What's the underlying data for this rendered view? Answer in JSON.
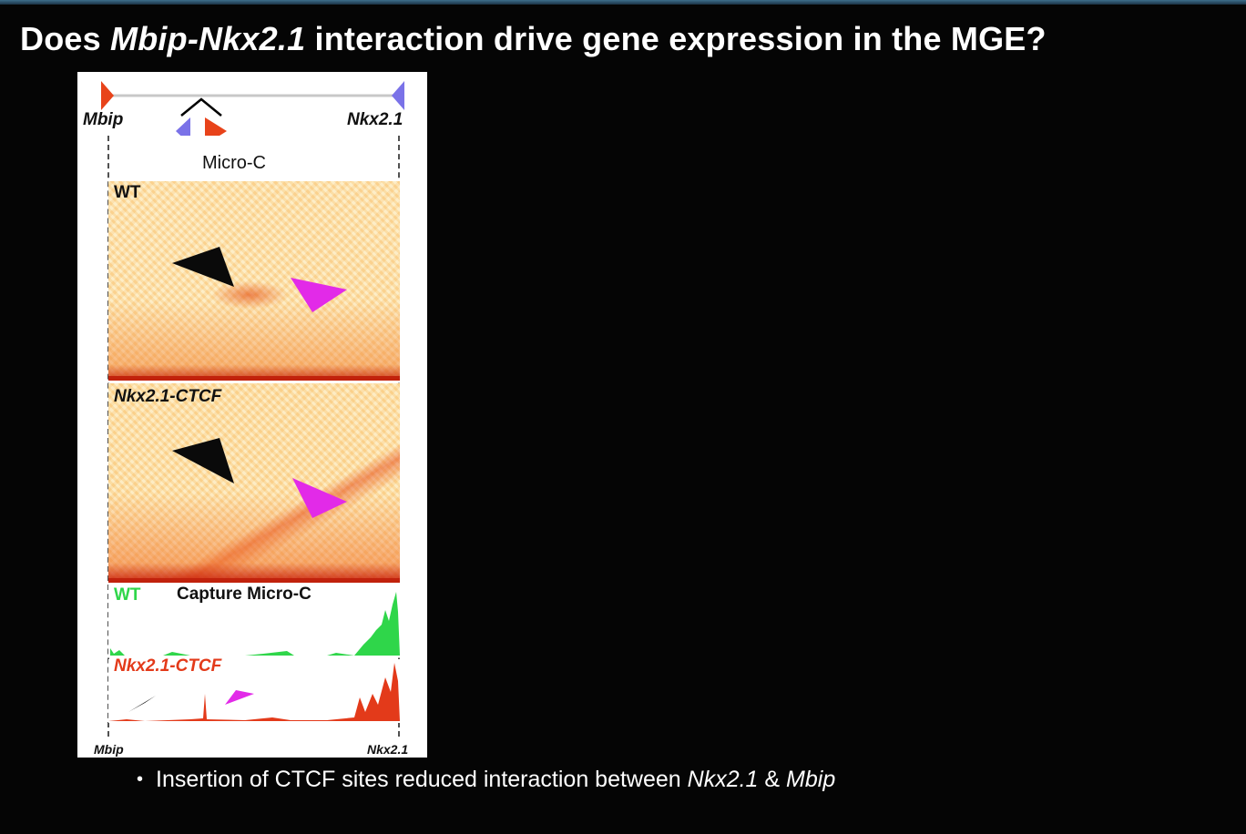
{
  "slide": {
    "title_part1": "Does ",
    "title_italic": "Mbip-Nkx2.1",
    "title_part2": " interaction drive gene expression in the MGE?",
    "bullet_part1": "Insertion of CTCF sites reduced interaction between ",
    "bullet_gene1": "Nkx2.1",
    "bullet_part2": " & ",
    "bullet_gene2": "Mbip"
  },
  "figure": {
    "gene_left": "Mbip",
    "gene_right": "Nkx2.1",
    "microc_title": "Micro-C",
    "panel_wt": "WT",
    "panel_ctcf": "Nkx2.1-CTCF",
    "capture_wt": "WT",
    "capture_title": "Capture Micro-C",
    "capture_ctcf": "Nkx2.1-CTCF",
    "axis_left": "Mbip",
    "axis_right": "Nkx2.1",
    "colors": {
      "ctcf_forward": "#e8431a",
      "ctcf_reverse": "#7a72e8",
      "arrow_loop": "#000000",
      "arrow_stripe": "#e22ae8",
      "wt_track": "#2fd64a",
      "ctcf_track": "#e33a1a"
    }
  }
}
